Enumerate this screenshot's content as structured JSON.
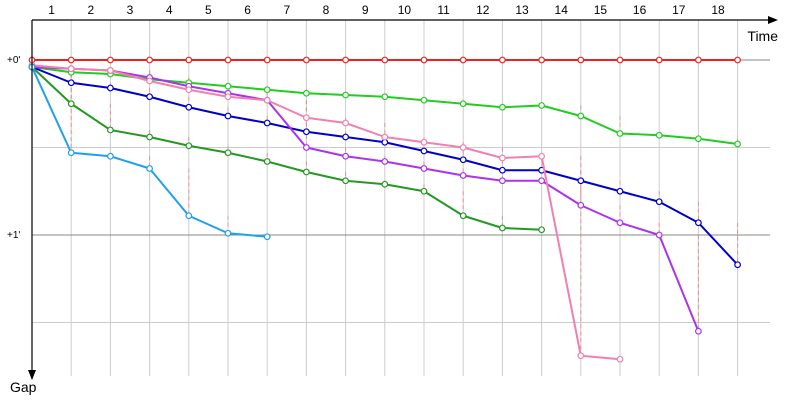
{
  "chart_data": {
    "type": "line",
    "x_axis_label": "Time",
    "y_axis_label": "Gap",
    "x_ticks": [
      "1",
      "2",
      "3",
      "4",
      "5",
      "6",
      "7",
      "8",
      "9",
      "10",
      "11",
      "12",
      "13",
      "14",
      "15",
      "16",
      "17",
      "18"
    ],
    "y_ticks": [
      {
        "label": "+0'",
        "value": 0
      },
      {
        "label": "+1'",
        "value": 1
      }
    ],
    "y_range": [
      0,
      1.8
    ],
    "x_range": [
      0,
      19
    ],
    "gridlines": true,
    "colors": {
      "axis": "#000000",
      "grid": "#cccccc",
      "connector": "#f08080"
    },
    "series": [
      {
        "color": "#ee2222",
        "points": [
          [
            0,
            0
          ],
          [
            1,
            0
          ],
          [
            2,
            0
          ],
          [
            3,
            0
          ],
          [
            4,
            0
          ],
          [
            5,
            0
          ],
          [
            6,
            0
          ],
          [
            7,
            0
          ],
          [
            8,
            0
          ],
          [
            9,
            0
          ],
          [
            10,
            0
          ],
          [
            11,
            0
          ],
          [
            12,
            0
          ],
          [
            13,
            0
          ],
          [
            14,
            0
          ],
          [
            15,
            0
          ],
          [
            16,
            0
          ],
          [
            17,
            0
          ],
          [
            18,
            0
          ]
        ]
      },
      {
        "color": "#22cc22",
        "points": [
          [
            0,
            0.04
          ],
          [
            1,
            0.07
          ],
          [
            2,
            0.08
          ],
          [
            3,
            0.11
          ],
          [
            4,
            0.13
          ],
          [
            5,
            0.15
          ],
          [
            6,
            0.17
          ],
          [
            7,
            0.19
          ],
          [
            8,
            0.2
          ],
          [
            9,
            0.21
          ],
          [
            10,
            0.23
          ],
          [
            11,
            0.25
          ],
          [
            12,
            0.27
          ],
          [
            13,
            0.26
          ],
          [
            14,
            0.32
          ],
          [
            15,
            0.42
          ],
          [
            16,
            0.43
          ],
          [
            17,
            0.45
          ],
          [
            18,
            0.48
          ]
        ]
      },
      {
        "color": "#0000cc",
        "points": [
          [
            0,
            0.04
          ],
          [
            1,
            0.13
          ],
          [
            2,
            0.16
          ],
          [
            3,
            0.21
          ],
          [
            4,
            0.27
          ],
          [
            5,
            0.32
          ],
          [
            6,
            0.36
          ],
          [
            7,
            0.41
          ],
          [
            8,
            0.44
          ],
          [
            9,
            0.47
          ],
          [
            10,
            0.52
          ],
          [
            11,
            0.57
          ],
          [
            12,
            0.63
          ],
          [
            13,
            0.63
          ],
          [
            14,
            0.69
          ],
          [
            15,
            0.75
          ],
          [
            16,
            0.81
          ],
          [
            17,
            0.93
          ],
          [
            18,
            1.17
          ]
        ]
      },
      {
        "color": "#aa33ee",
        "points": [
          [
            0,
            0.04
          ],
          [
            1,
            0.05
          ],
          [
            2,
            0.06
          ],
          [
            3,
            0.1
          ],
          [
            4,
            0.15
          ],
          [
            5,
            0.19
          ],
          [
            6,
            0.23
          ],
          [
            7,
            0.5
          ],
          [
            8,
            0.55
          ],
          [
            9,
            0.58
          ],
          [
            10,
            0.62
          ],
          [
            11,
            0.66
          ],
          [
            12,
            0.69
          ],
          [
            13,
            0.69
          ],
          [
            14,
            0.83
          ],
          [
            15,
            0.93
          ],
          [
            16,
            1.0
          ],
          [
            17,
            1.55
          ]
        ]
      },
      {
        "color": "#f080b0",
        "points": [
          [
            0,
            0.03
          ],
          [
            1,
            0.05
          ],
          [
            2,
            0.06
          ],
          [
            3,
            0.12
          ],
          [
            4,
            0.17
          ],
          [
            5,
            0.21
          ],
          [
            6,
            0.23
          ],
          [
            7,
            0.33
          ],
          [
            8,
            0.36
          ],
          [
            9,
            0.44
          ],
          [
            10,
            0.47
          ],
          [
            11,
            0.5
          ],
          [
            12,
            0.56
          ],
          [
            13,
            0.55
          ],
          [
            14,
            1.69
          ],
          [
            15,
            1.71
          ]
        ]
      },
      {
        "color": "#229922",
        "points": [
          [
            0,
            0.04
          ],
          [
            1,
            0.25
          ],
          [
            2,
            0.4
          ],
          [
            3,
            0.44
          ],
          [
            4,
            0.49
          ],
          [
            5,
            0.53
          ],
          [
            6,
            0.58
          ],
          [
            7,
            0.64
          ],
          [
            8,
            0.69
          ],
          [
            9,
            0.71
          ],
          [
            10,
            0.75
          ],
          [
            11,
            0.89
          ],
          [
            12,
            0.96
          ],
          [
            13,
            0.97
          ]
        ]
      },
      {
        "color": "#1ea0ee",
        "points": [
          [
            0,
            0.04
          ],
          [
            1,
            0.53
          ],
          [
            2,
            0.55
          ],
          [
            3,
            0.62
          ],
          [
            4,
            0.89
          ],
          [
            5,
            0.99
          ],
          [
            6,
            1.01
          ]
        ]
      }
    ]
  }
}
